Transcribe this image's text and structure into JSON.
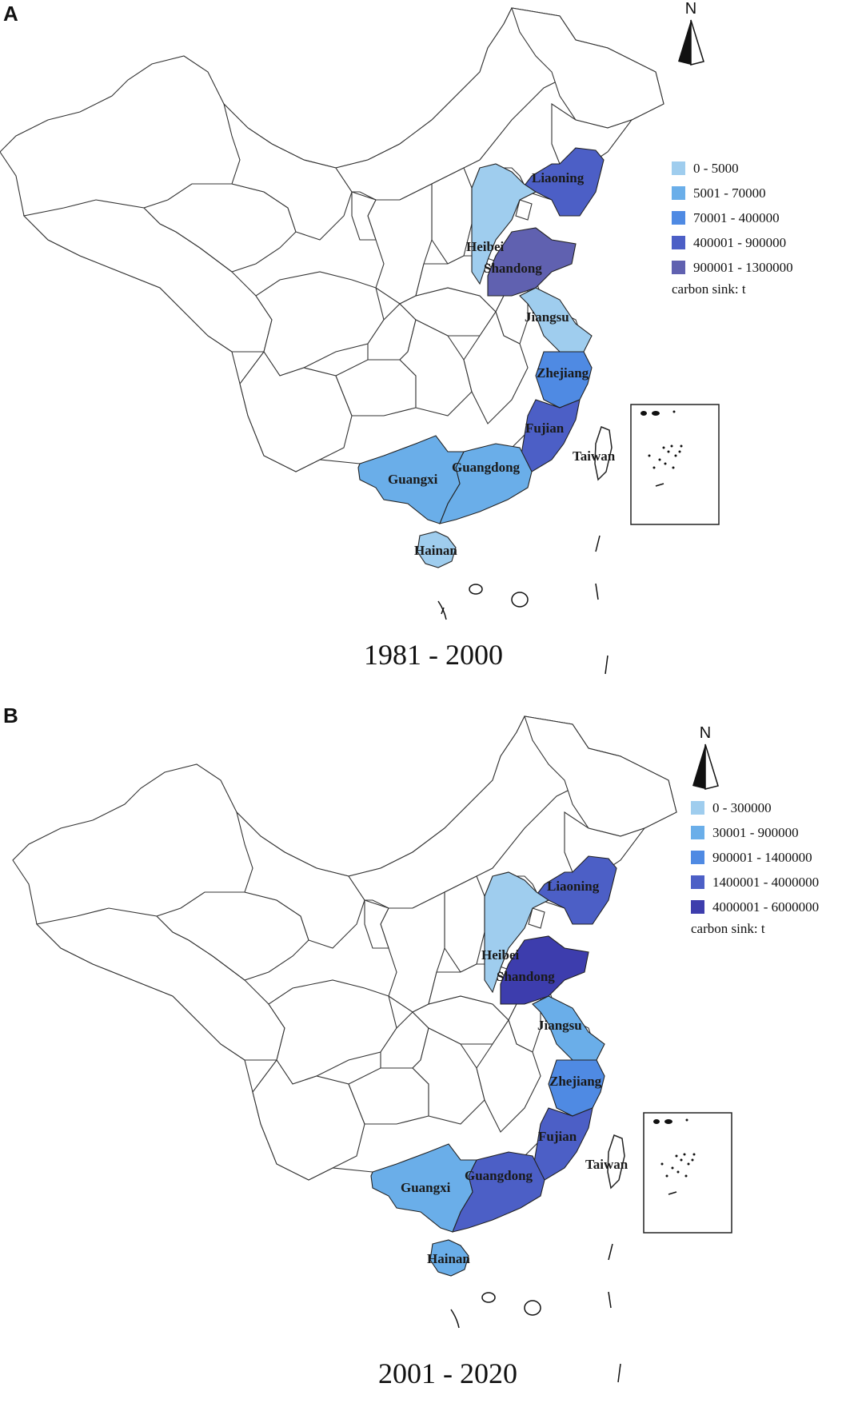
{
  "colors": {
    "c1": "#9fcdee",
    "c2": "#6aaee9",
    "c3": "#4f8ae3",
    "c4": "#4c5fc6",
    "c5_a": "#6061b0",
    "c5_b": "#3d3dad"
  },
  "panels": [
    {
      "letter": "A",
      "north": "N",
      "period": "1981 - 2000",
      "legend": [
        {
          "label": "0 - 5000",
          "color": "#9fcdee"
        },
        {
          "label": "5001 - 70000",
          "color": "#6aaee9"
        },
        {
          "label": "70001 - 400000",
          "color": "#4f8ae3"
        },
        {
          "label": "400001 - 900000",
          "color": "#4c5fc6"
        },
        {
          "label": "900001 - 1300000",
          "color": "#6061b0"
        }
      ],
      "legend_unit": "carbon sink: t",
      "provinces": {
        "Liaoning": "400001 - 900000",
        "Heibei": "0 - 5000",
        "Shandong": "900001 - 1300000",
        "Jiangsu": "0 - 5000",
        "Zhejiang": "70001 - 400000",
        "Fujian": "400001 - 900000",
        "Guangdong": "5001 - 70000",
        "Guangxi": "5001 - 70000",
        "Hainan": "0 - 5000",
        "Taiwan": ""
      },
      "labels": [
        "Liaoning",
        "Heibei",
        "Shandong",
        "Jiangsu",
        "Zhejiang",
        "Fujian",
        "Taiwan",
        "Guangdong",
        "Guangxi",
        "Hainan"
      ]
    },
    {
      "letter": "B",
      "north": "N",
      "period": "2001 - 2020",
      "legend": [
        {
          "label": "0 - 300000",
          "color": "#9fcdee"
        },
        {
          "label": "30001 - 900000",
          "color": "#6aaee9"
        },
        {
          "label": "900001 - 1400000",
          "color": "#4f8ae3"
        },
        {
          "label": "1400001 - 4000000",
          "color": "#4c5fc6"
        },
        {
          "label": "4000001 - 6000000",
          "color": "#3d3dad"
        }
      ],
      "legend_unit": "carbon sink: t",
      "provinces": {
        "Liaoning": "1400001 - 4000000",
        "Heibei": "0 - 300000",
        "Shandong": "4000001 - 6000000",
        "Jiangsu": "30001 - 900000",
        "Zhejiang": "900001 - 1400000",
        "Fujian": "1400001 - 4000000",
        "Guangdong": "1400001 - 4000000",
        "Guangxi": "30001 - 900000",
        "Hainan": "30001 - 900000",
        "Taiwan": ""
      },
      "labels": [
        "Liaoning",
        "Heibei",
        "Shandong",
        "Jiangsu",
        "Zhejiang",
        "Fujian",
        "Taiwan",
        "Guangdong",
        "Guangxi",
        "Hainan"
      ]
    }
  ]
}
